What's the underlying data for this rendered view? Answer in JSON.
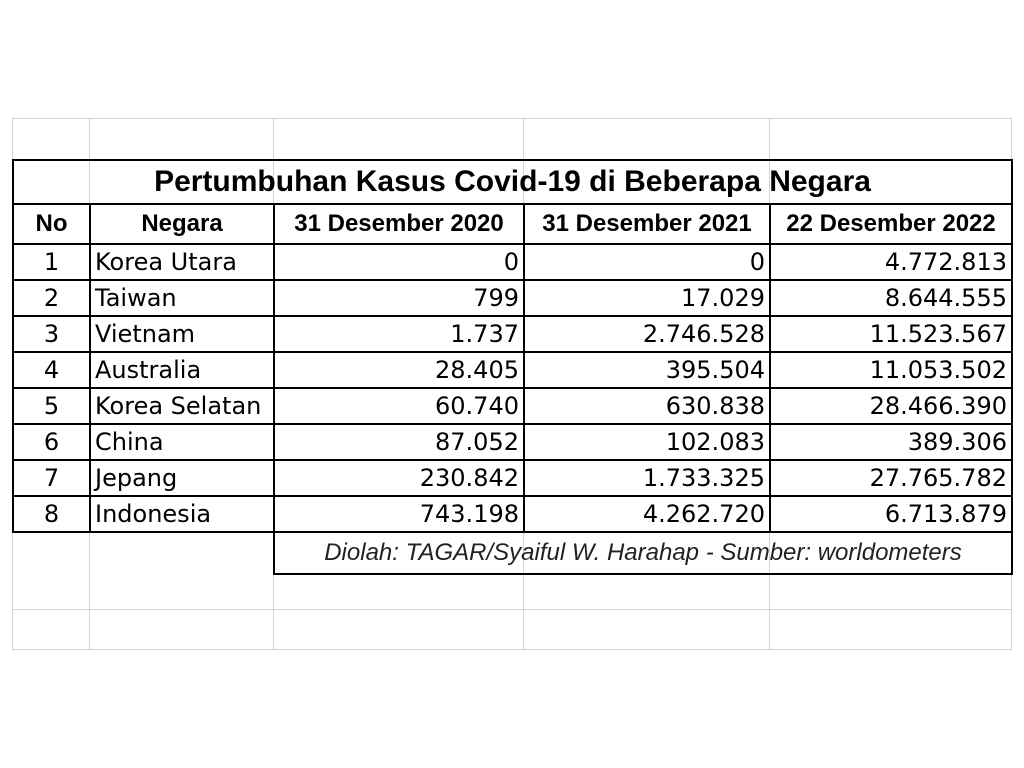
{
  "title": "Pertumbuhan Kasus Covid-19 di Beberapa Negara",
  "columns": [
    "No",
    "Negara",
    "31 Desember 2020",
    "31 Desember 2021",
    "22 Desember 2022"
  ],
  "rows": [
    {
      "no": "1",
      "country": "Korea Utara",
      "d2020": "0",
      "d2021": "0",
      "d2022": "4.772.813"
    },
    {
      "no": "2",
      "country": "Taiwan",
      "d2020": "799",
      "d2021": "17.029",
      "d2022": "8.644.555"
    },
    {
      "no": "3",
      "country": "Vietnam",
      "d2020": "1.737",
      "d2021": "2.746.528",
      "d2022": "11.523.567"
    },
    {
      "no": "4",
      "country": "Australia",
      "d2020": "28.405",
      "d2021": "395.504",
      "d2022": "11.053.502"
    },
    {
      "no": "5",
      "country": "Korea Selatan",
      "d2020": "60.740",
      "d2021": "630.838",
      "d2022": "28.466.390"
    },
    {
      "no": "6",
      "country": "China",
      "d2020": "87.052",
      "d2021": "102.083",
      "d2022": "389.306"
    },
    {
      "no": "7",
      "country": "Jepang",
      "d2020": "230.842",
      "d2021": "1.733.325",
      "d2022": "27.765.782"
    },
    {
      "no": "8",
      "country": "Indonesia",
      "d2020": "743.198",
      "d2021": "4.262.720",
      "d2022": "6.713.879"
    }
  ],
  "source": "Diolah: TAGAR/Syaiful W. Harahap - Sumber: worldometers"
}
